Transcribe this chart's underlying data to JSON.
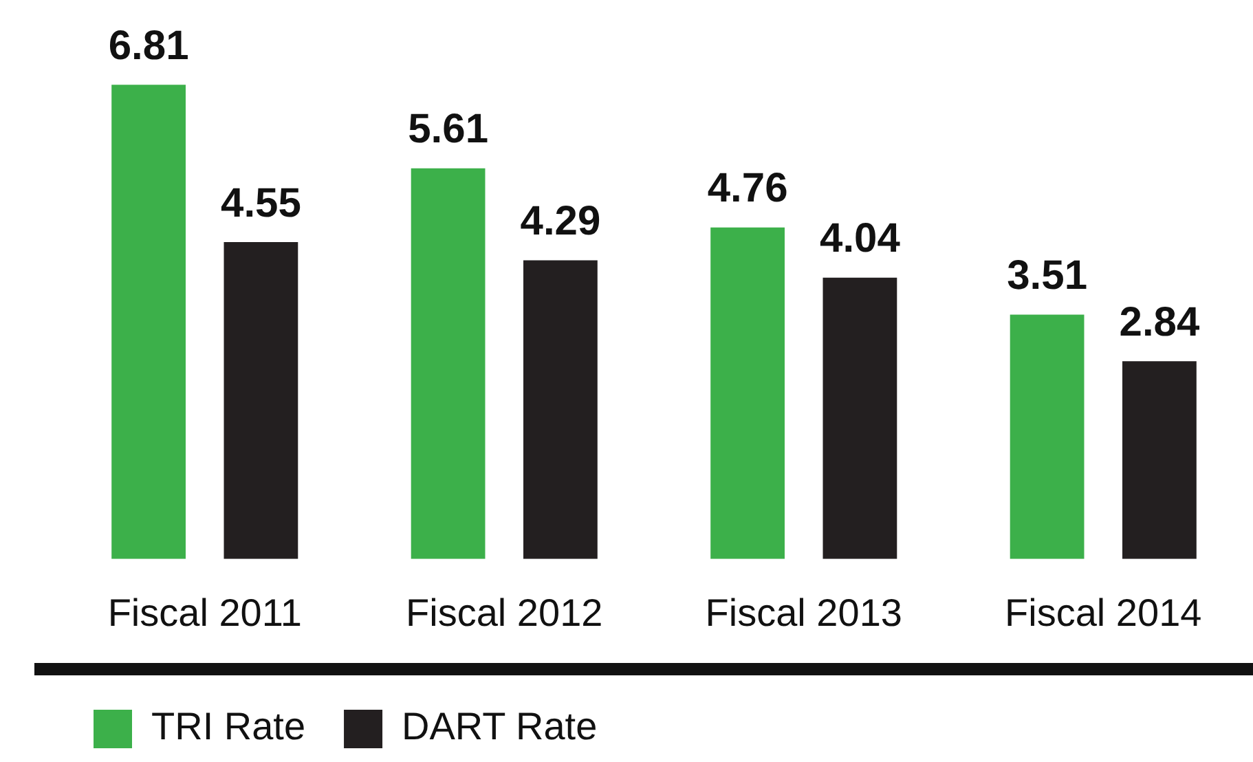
{
  "chart_data": {
    "type": "bar",
    "categories": [
      "Fiscal 2011",
      "Fiscal 2012",
      "Fiscal 2013",
      "Fiscal 2014"
    ],
    "series": [
      {
        "name": "TRI Rate",
        "color": "#3cb04a",
        "values": [
          6.81,
          5.61,
          4.76,
          3.51
        ]
      },
      {
        "name": "DART Rate",
        "color": "#231f20",
        "values": [
          4.55,
          4.29,
          4.04,
          2.84
        ]
      }
    ],
    "data_labels": true,
    "legend": "bottom left",
    "grid": false,
    "tick_labels": "x"
  }
}
